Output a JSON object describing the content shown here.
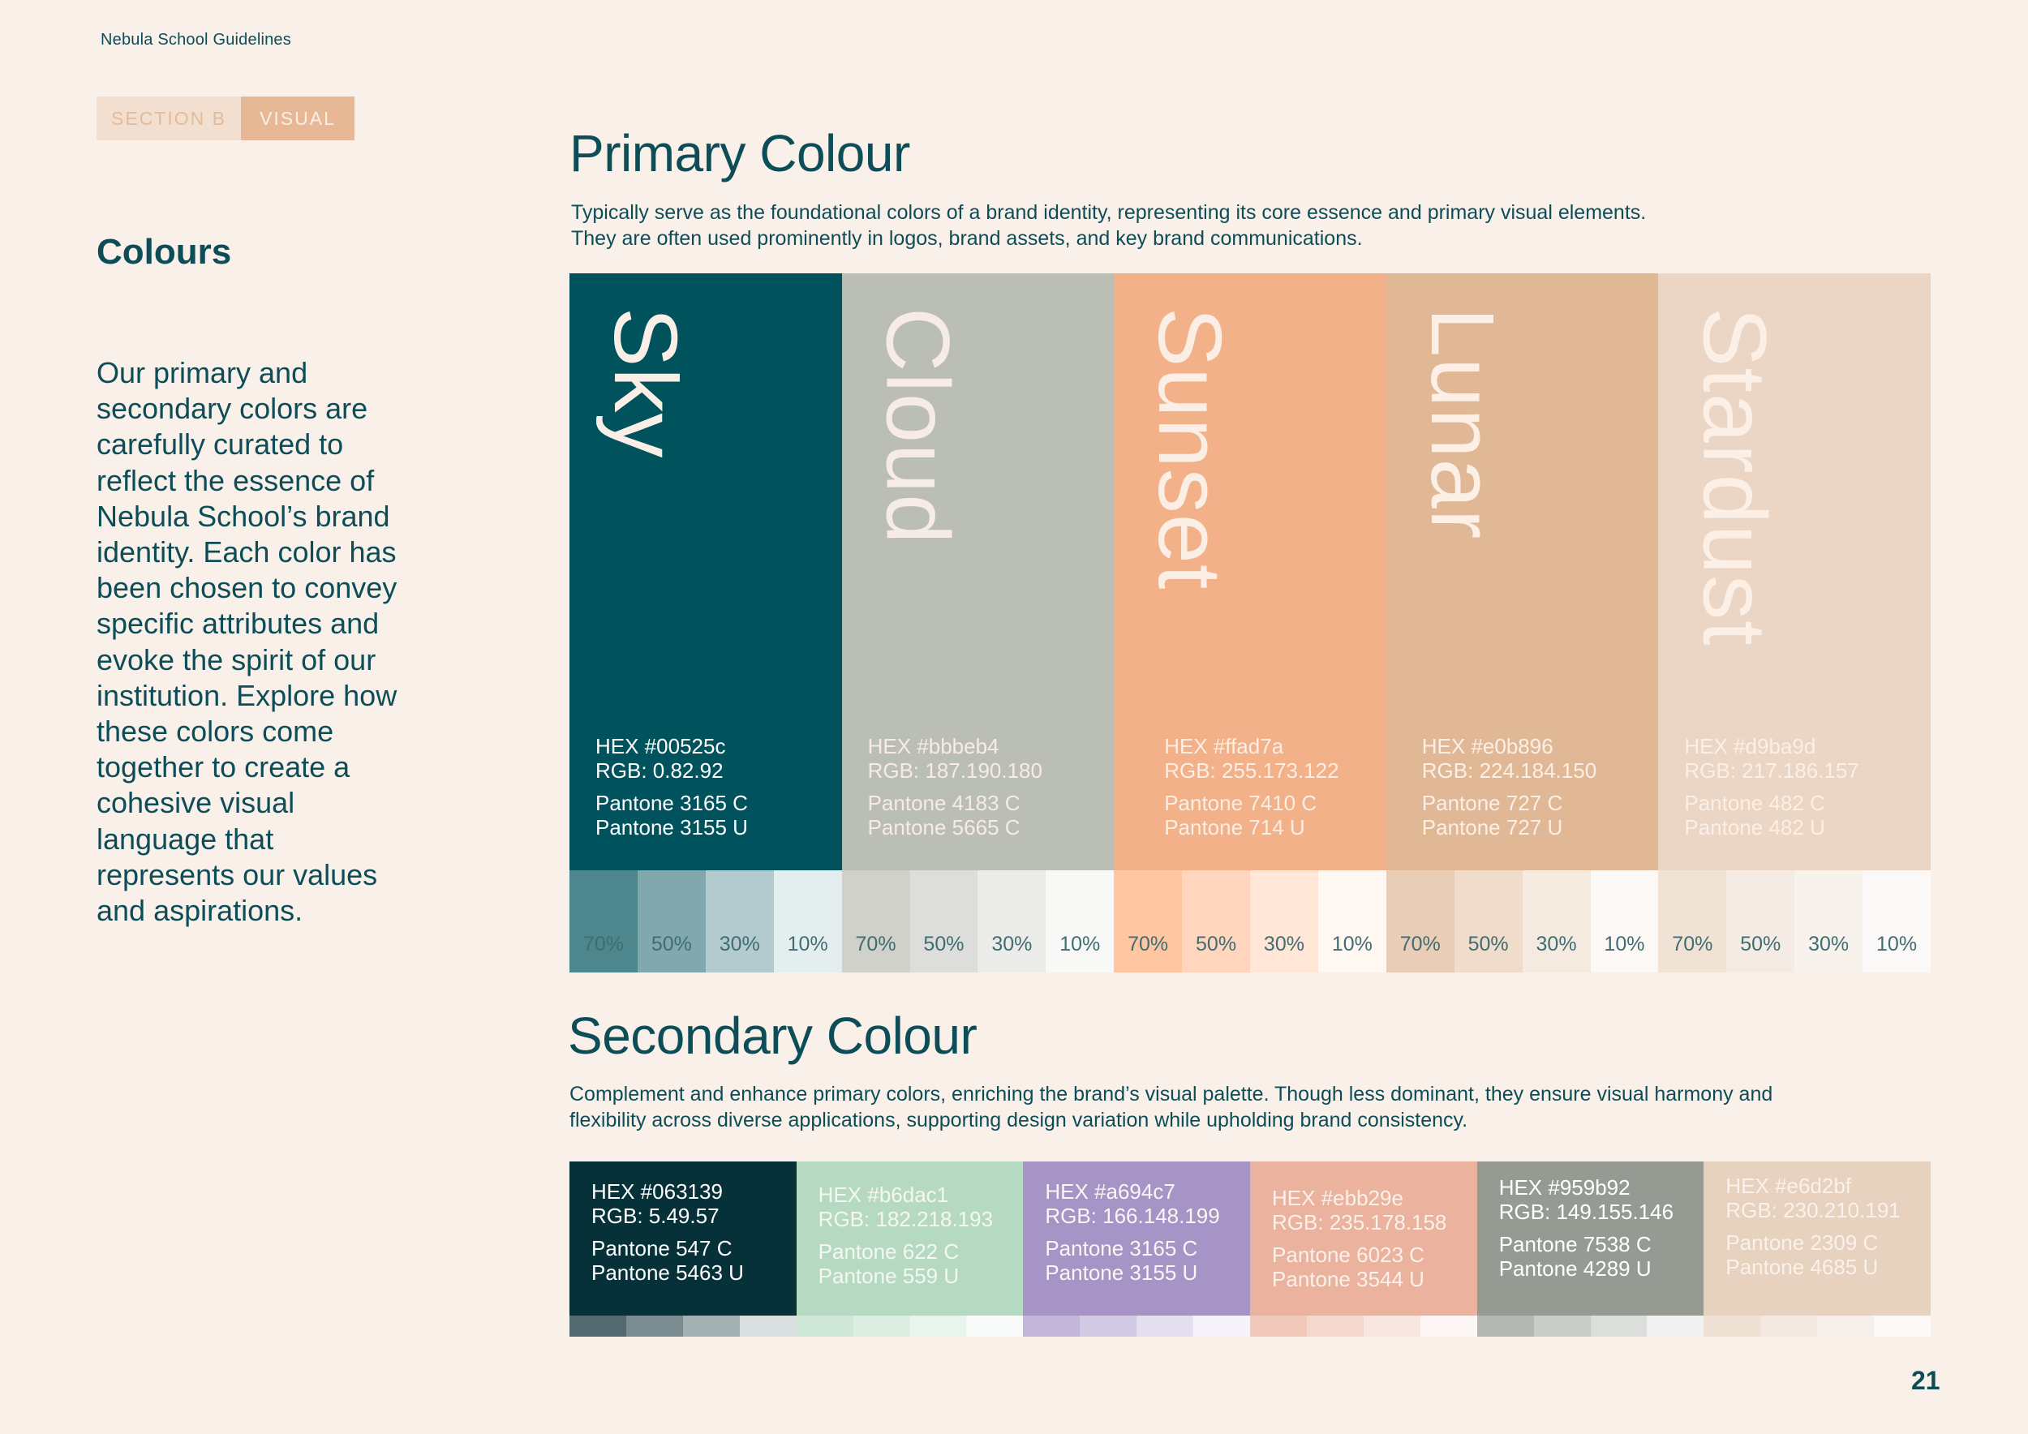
{
  "header": {
    "title": "Nebula School Guidelines"
  },
  "section_tag": {
    "section": "SECTION B",
    "visual": "VISUAL"
  },
  "sidebar": {
    "heading": "Colours",
    "body": "Our primary and secondary colors are carefully curated to reflect the essence of Nebula School’s brand identity. Each color has been chosen to convey specific attributes and evoke the spirit of our institution. Explore how these colors come together to create a cohesive visual language that represents our values and aspirations."
  },
  "primary": {
    "title": "Primary Colour",
    "description_line1": "Typically serve as the foundational colors of a brand identity, representing its core essence and primary visual elements.",
    "description_line2": "They are often used prominently in logos, brand assets, and key brand communications.",
    "colors": [
      {
        "name": "Sky",
        "hex": "HEX #00525c",
        "rgb": "RGB: 0.82.92",
        "pantone_c": "Pantone 3165 C",
        "pantone_u": "Pantone 3155 U",
        "bg": "#00525c",
        "name_color": "#faefe6",
        "text_color": "#ffffff",
        "tints": [
          {
            "label": "70%",
            "bg": "#4d868c"
          },
          {
            "label": "50%",
            "bg": "#80a8ad"
          },
          {
            "label": "30%",
            "bg": "#b3cbce"
          },
          {
            "label": "10%",
            "bg": "#e5eeee"
          }
        ]
      },
      {
        "name": "Cloud",
        "hex": "HEX #bbbeb4",
        "rgb": "RGB: 187.190.180",
        "pantone_c": "Pantone 4183 C",
        "pantone_u": "Pantone 5665 C",
        "bg": "#bbbeb4",
        "name_color": "#f6ece5",
        "text_color": "#f6ece5",
        "tints": [
          {
            "label": "70%",
            "bg": "#cfd1ca"
          },
          {
            "label": "50%",
            "bg": "#dddedb"
          },
          {
            "label": "30%",
            "bg": "#ebebe9"
          },
          {
            "label": "10%",
            "bg": "#f8f8f7"
          }
        ]
      },
      {
        "name": "Sunset",
        "hex": "HEX #ffad7a",
        "rgb": "RGB: 255.173.122",
        "pantone_c": "Pantone 7410 C",
        "pantone_u": "Pantone 714 U",
        "bg": "#f2b188",
        "name_color": "#fbeee4",
        "text_color": "#fbeee4",
        "tints": [
          {
            "label": "70%",
            "bg": "#ffc6a2"
          },
          {
            "label": "50%",
            "bg": "#ffd6bd"
          },
          {
            "label": "30%",
            "bg": "#ffe6d7"
          },
          {
            "label": "10%",
            "bg": "#fff7f2"
          }
        ]
      },
      {
        "name": "Lunar",
        "hex": "HEX #e0b896",
        "rgb": "RGB: 224.184.150",
        "pantone_c": "Pantone 727 C",
        "pantone_u": "Pantone 727 U",
        "bg": "#e0b896",
        "name_color": "#fbefe6",
        "text_color": "#fbefe6",
        "tints": [
          {
            "label": "70%",
            "bg": "#e9cdb6"
          },
          {
            "label": "50%",
            "bg": "#efdccb"
          },
          {
            "label": "30%",
            "bg": "#f5eae0"
          },
          {
            "label": "10%",
            "bg": "#fcf8f5"
          }
        ]
      },
      {
        "name": "Stardust",
        "hex": "HEX #d9ba9d",
        "rgb": "RGB: 217.186.157",
        "pantone_c": "Pantone 482 C",
        "pantone_u": "Pantone 482 U",
        "bg": "#ebd6c5",
        "name_color": "#fbefe6",
        "text_color": "#fbefe6",
        "tints": [
          {
            "label": "70%",
            "bg": "#f1e2d6"
          },
          {
            "label": "50%",
            "bg": "#f4ebe4"
          },
          {
            "label": "30%",
            "bg": "#f8f2ed"
          },
          {
            "label": "10%",
            "bg": "#fbf9f7"
          }
        ]
      }
    ]
  },
  "secondary": {
    "title": "Secondary Colour",
    "description_line1": "Complement and enhance primary colors, enriching the brand’s visual palette. Though less dominant, they ensure visual harmony and",
    "description_line2": "flexibility across diverse applications, supporting design variation while upholding brand consistency.",
    "colors": [
      {
        "hex": "HEX #063139",
        "rgb": "RGB: 5.49.57",
        "pantone_c": "Pantone 547 C",
        "pantone_u": "Pantone 5463 U",
        "bg": "#063139",
        "text_color": "#ffffff",
        "tints": [
          "#526a6f",
          "#7a8c90",
          "#a4b1b3",
          "#d9dedf"
        ]
      },
      {
        "hex": "HEX #b6dac1",
        "rgb": "RGB: 182.218.193",
        "pantone_c": "Pantone 622 C",
        "pantone_u": "Pantone 559 U",
        "bg": "#b6dac1",
        "text_color": "#f5f7f2",
        "tints": [
          "#cfe7d6",
          "#dcede1",
          "#e9f4ec",
          "#f8fbf9"
        ]
      },
      {
        "hex": "HEX #a694c7",
        "rgb": "RGB: 166.148.199",
        "pantone_c": "Pantone 3165 C",
        "pantone_u": "Pantone 3155 U",
        "bg": "#a694c7",
        "text_color": "#fbf5f4",
        "tints": [
          "#c2b6d9",
          "#d2cae3",
          "#e4dfee",
          "#f6f4fa"
        ]
      },
      {
        "hex": "HEX #ebb29e",
        "rgb": "RGB: 235.178.158",
        "pantone_c": "Pantone 6023 C",
        "pantone_u": "Pantone 3544 U",
        "bg": "#ebb29e",
        "text_color": "#fbf1ec",
        "tints": [
          "#f1c9bb",
          "#f4d8ce",
          "#f8e7e1",
          "#fcf6f4"
        ]
      },
      {
        "hex": "HEX #959b92",
        "rgb": "RGB: 149.155.146",
        "pantone_c": "Pantone 7538 C",
        "pantone_u": "Pantone 4289 U",
        "bg": "#959b92",
        "text_color": "#ffffff",
        "tints": [
          "#b4b8b2",
          "#c9ccc7",
          "#dcdedb",
          "#f0f1f0"
        ]
      },
      {
        "hex": "HEX #e6d2bf",
        "rgb": "RGB: 230.210.191",
        "pantone_c": "Pantone 2309 C",
        "pantone_u": "Pantone 4685 U",
        "bg": "#e6d2bf",
        "text_color": "#faf1ea",
        "tints": [
          "#eee0d3",
          "#f2e8df",
          "#f6efe9",
          "#fbf8f5"
        ]
      }
    ]
  },
  "page_number": "21"
}
